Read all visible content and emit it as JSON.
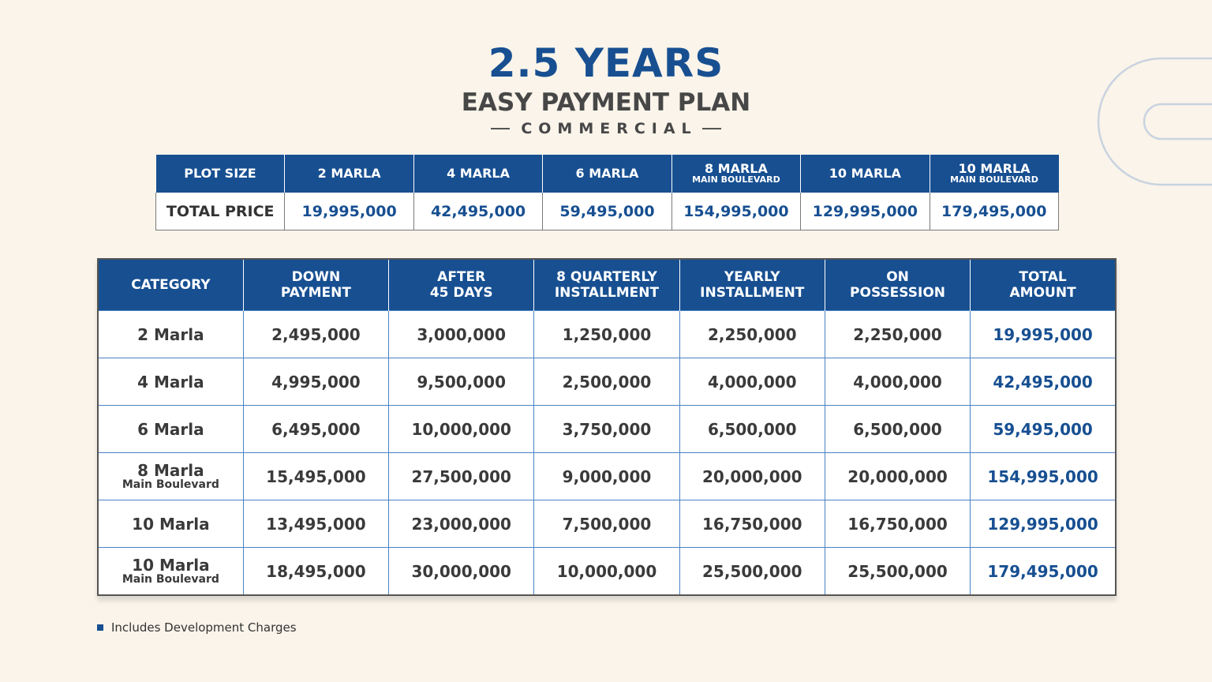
{
  "header": {
    "title": "2.5 YEARS",
    "subtitle": "EASY PAYMENT PLAN",
    "tag": "COMMERCIAL"
  },
  "summary": {
    "headers": [
      {
        "label": "PLOT SIZE",
        "sub": ""
      },
      {
        "label": "2 MARLA",
        "sub": ""
      },
      {
        "label": "4 MARLA",
        "sub": ""
      },
      {
        "label": "6 MARLA",
        "sub": ""
      },
      {
        "label": "8 MARLA",
        "sub": "MAIN BOULEVARD"
      },
      {
        "label": "10 MARLA",
        "sub": ""
      },
      {
        "label": "10 MARLA",
        "sub": "MAIN BOULEVARD"
      }
    ],
    "row_label": "TOTAL PRICE",
    "prices": [
      "19,995,000",
      "42,495,000",
      "59,495,000",
      "154,995,000",
      "129,995,000",
      "179,495,000"
    ]
  },
  "table": {
    "headers": [
      {
        "line1": "CATEGORY",
        "line2": ""
      },
      {
        "line1": "DOWN",
        "line2": "PAYMENT"
      },
      {
        "line1": "AFTER",
        "line2": "45 DAYS"
      },
      {
        "line1": "8 QUARTERLY",
        "line2": "INSTALLMENT"
      },
      {
        "line1": "YEARLY",
        "line2": "INSTALLMENT"
      },
      {
        "line1": "ON",
        "line2": "POSSESSION"
      },
      {
        "line1": "TOTAL",
        "line2": "AMOUNT"
      }
    ],
    "rows": [
      {
        "category": "2 Marla",
        "sub": "",
        "values": [
          "2,495,000",
          "3,000,000",
          "1,250,000",
          "2,250,000",
          "2,250,000"
        ],
        "total": "19,995,000"
      },
      {
        "category": "4 Marla",
        "sub": "",
        "values": [
          "4,995,000",
          "9,500,000",
          "2,500,000",
          "4,000,000",
          "4,000,000"
        ],
        "total": "42,495,000"
      },
      {
        "category": "6 Marla",
        "sub": "",
        "values": [
          "6,495,000",
          "10,000,000",
          "3,750,000",
          "6,500,000",
          "6,500,000"
        ],
        "total": "59,495,000"
      },
      {
        "category": "8 Marla",
        "sub": "Main Boulevard",
        "values": [
          "15,495,000",
          "27,500,000",
          "9,000,000",
          "20,000,000",
          "20,000,000"
        ],
        "total": "154,995,000"
      },
      {
        "category": "10 Marla",
        "sub": "",
        "values": [
          "13,495,000",
          "23,000,000",
          "7,500,000",
          "16,750,000",
          "16,750,000"
        ],
        "total": "129,995,000"
      },
      {
        "category": "10 Marla",
        "sub": "Main Boulevard",
        "values": [
          "18,495,000",
          "30,000,000",
          "10,000,000",
          "25,500,000",
          "25,500,000"
        ],
        "total": "179,495,000"
      }
    ]
  },
  "footnote": {
    "text": "Includes Development Charges"
  },
  "colors": {
    "accent": "#174f91",
    "background": "#faf4ea",
    "grid": "#4a83c6"
  }
}
